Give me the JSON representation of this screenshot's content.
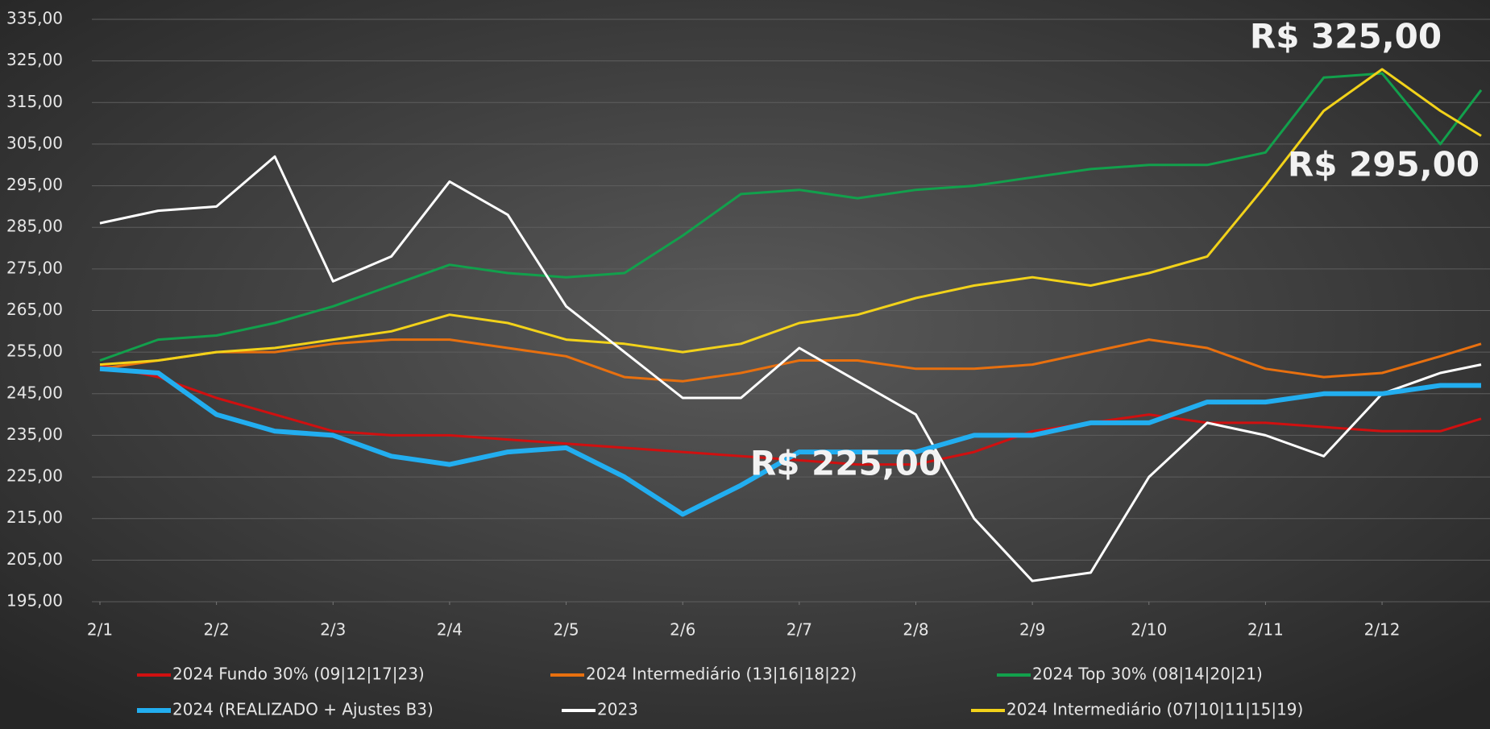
{
  "chart_data": {
    "type": "line",
    "x": [
      0,
      0.5,
      1,
      1.5,
      2,
      2.5,
      3,
      3.5,
      4,
      4.5,
      5,
      5.5,
      6,
      6.5,
      7,
      7.5,
      8,
      8.5,
      9,
      9.5,
      10,
      10.5,
      11,
      11.5,
      11.85
    ],
    "xlim": [
      0,
      11.85
    ],
    "xticks": [
      {
        "value": 0,
        "label": "2/1"
      },
      {
        "value": 1,
        "label": "2/2"
      },
      {
        "value": 2,
        "label": "2/3"
      },
      {
        "value": 3,
        "label": "2/4"
      },
      {
        "value": 4,
        "label": "2/5"
      },
      {
        "value": 5,
        "label": "2/6"
      },
      {
        "value": 6,
        "label": "2/7"
      },
      {
        "value": 7,
        "label": "2/8"
      },
      {
        "value": 8,
        "label": "2/9"
      },
      {
        "value": 9,
        "label": "2/10"
      },
      {
        "value": 10,
        "label": "2/11"
      },
      {
        "value": 11,
        "label": "2/12"
      }
    ],
    "ylim": [
      195,
      335
    ],
    "yticks": [
      {
        "value": 195,
        "label": "195,00"
      },
      {
        "value": 205,
        "label": "205,00"
      },
      {
        "value": 215,
        "label": "215,00"
      },
      {
        "value": 225,
        "label": "225,00"
      },
      {
        "value": 235,
        "label": "235,00"
      },
      {
        "value": 245,
        "label": "245,00"
      },
      {
        "value": 255,
        "label": "255,00"
      },
      {
        "value": 265,
        "label": "265,00"
      },
      {
        "value": 275,
        "label": "275,00"
      },
      {
        "value": 285,
        "label": "285,00"
      },
      {
        "value": 295,
        "label": "295,00"
      },
      {
        "value": 305,
        "label": "305,00"
      },
      {
        "value": 315,
        "label": "315,00"
      },
      {
        "value": 325,
        "label": "325,00"
      },
      {
        "value": 335,
        "label": "335,00"
      }
    ],
    "grid": true,
    "legend": "bottom",
    "annotations": [
      "R$ 325,00",
      "R$ 295,00",
      "R$ 225,00"
    ],
    "series": [
      {
        "name": "2024 Fundo 30% (09|12|17|23)",
        "color": "#d01010",
        "values": [
          252,
          249,
          244,
          240,
          236,
          235,
          235,
          234,
          233,
          232,
          231,
          230,
          229,
          228,
          228,
          231,
          236,
          238,
          240,
          238,
          238,
          237,
          236,
          236,
          239
        ]
      },
      {
        "name": "2024 Intermediário (13|16|18|22)",
        "color": "#e8700f",
        "values": [
          251,
          253,
          255,
          255,
          257,
          258,
          258,
          256,
          254,
          249,
          248,
          250,
          253,
          253,
          251,
          251,
          252,
          255,
          258,
          256,
          251,
          249,
          250,
          254,
          257
        ]
      },
      {
        "name": "2024 Top 30% (08|14|20|21)",
        "color": "#12a04c",
        "values": [
          253,
          258,
          259,
          262,
          266,
          271,
          276,
          274,
          273,
          274,
          283,
          293,
          294,
          292,
          294,
          295,
          297,
          299,
          300,
          300,
          303,
          321,
          322,
          305,
          318
        ]
      },
      {
        "name": "2024 (REALIZADO + Ajustes B3)",
        "color": "#22aef0",
        "values": [
          251,
          250,
          240,
          236,
          235,
          230,
          228,
          231,
          232,
          225,
          216,
          223,
          231,
          231,
          231,
          235,
          235,
          238,
          238,
          243,
          243,
          245,
          245,
          247,
          247
        ]
      },
      {
        "name": "2023",
        "color": "#ffffff",
        "values": [
          286,
          289,
          290,
          302,
          272,
          278,
          296,
          288,
          266,
          255,
          244,
          244,
          256,
          248,
          240,
          215,
          200,
          202,
          225,
          238,
          235,
          230,
          245,
          250,
          252
        ]
      },
      {
        "name": "2024 Intermediário (07|10|11|15|19)",
        "color": "#f2d21a",
        "values": [
          252,
          253,
          255,
          256,
          258,
          260,
          264,
          262,
          258,
          257,
          255,
          257,
          262,
          264,
          268,
          271,
          273,
          271,
          274,
          278,
          295,
          313,
          323,
          313,
          307
        ]
      }
    ]
  }
}
